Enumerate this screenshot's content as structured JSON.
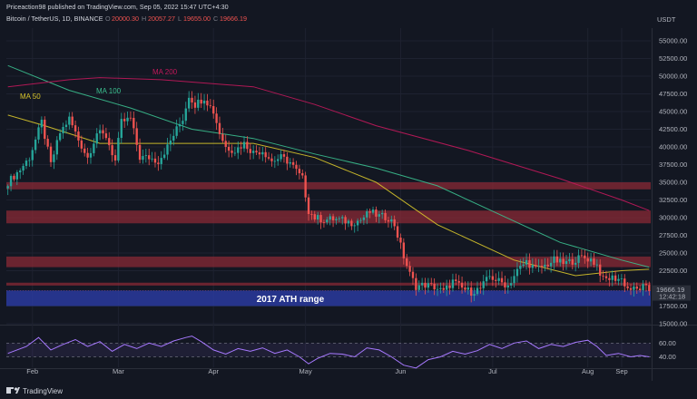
{
  "header": {
    "publish_line": "Priceaction98 published on TradingView.com, Sep 05, 2022 15:47 UTC+4:30",
    "symbol": "Bitcoin / TetherUS, 1D, BINANCE",
    "ohlc": [
      {
        "k": "O",
        "v": "20000.30"
      },
      {
        "k": "H",
        "v": "20057.27"
      },
      {
        "k": "L",
        "v": "19655.00"
      },
      {
        "k": "C",
        "v": "19666.19"
      }
    ]
  },
  "footer": {
    "brand": "TradingView"
  },
  "colors": {
    "bg": "#131722",
    "grid": "#1e2230",
    "up": "#26a69a",
    "down": "#ef5350",
    "ma50": "#d8c52b",
    "ma100": "#3bbf8f",
    "ma200": "#c2185b",
    "zone": "#8a2a36",
    "ath_zone": "#2a3a9e",
    "rsi": "#a779ff"
  },
  "chart_data": {
    "type": "candlestick",
    "symbol": "Bitcoin / TetherUS",
    "timeframe": "1D",
    "exchange": "BINANCE",
    "currency": "USDT",
    "y_ticks": [
      "55000.00",
      "52500.00",
      "50000.00",
      "47500.00",
      "45000.00",
      "42500.00",
      "40000.00",
      "37500.00",
      "35000.00",
      "32500.00",
      "30000.00",
      "27500.00",
      "25000.00",
      "22500.00",
      "17500.00",
      "15000.00"
    ],
    "ylim": [
      15000,
      56800
    ],
    "x_ticks": [
      "Feb",
      "Mar",
      "Apr",
      "May",
      "Jun",
      "Jul",
      "Aug",
      "Sep"
    ],
    "last_price": "19666.19",
    "countdown": "12:42:18",
    "anchors": [
      [
        0,
        35000
      ],
      [
        4,
        36800
      ],
      [
        7,
        38500
      ],
      [
        11,
        43500
      ],
      [
        14,
        37500
      ],
      [
        17,
        42000
      ],
      [
        20,
        44000
      ],
      [
        23,
        41000
      ],
      [
        26,
        38500
      ],
      [
        29,
        42000
      ],
      [
        32,
        41500
      ],
      [
        35,
        38000
      ],
      [
        37,
        43500
      ],
      [
        40,
        44000
      ],
      [
        43,
        38500
      ],
      [
        46,
        38500
      ],
      [
        49,
        38000
      ],
      [
        52,
        40000
      ],
      [
        55,
        42500
      ],
      [
        57,
        44000
      ],
      [
        59,
        47300
      ],
      [
        61,
        46000
      ],
      [
        64,
        47000
      ],
      [
        67,
        45000
      ],
      [
        69,
        42000
      ],
      [
        71,
        40000
      ],
      [
        74,
        39500
      ],
      [
        77,
        40500
      ],
      [
        80,
        39200
      ],
      [
        83,
        39500
      ],
      [
        86,
        38000
      ],
      [
        89,
        38500
      ],
      [
        92,
        37800
      ],
      [
        95,
        36000
      ],
      [
        96,
        35500
      ],
      [
        98,
        31000
      ],
      [
        100,
        30000
      ],
      [
        103,
        29700
      ],
      [
        106,
        29800
      ],
      [
        109,
        29600
      ],
      [
        112,
        29300
      ],
      [
        115,
        29700
      ],
      [
        118,
        30800
      ],
      [
        121,
        30200
      ],
      [
        124,
        30000
      ],
      [
        126,
        29000
      ],
      [
        129,
        24500
      ],
      [
        131,
        22000
      ],
      [
        133,
        20300
      ],
      [
        136,
        20500
      ],
      [
        139,
        20200
      ],
      [
        142,
        19500
      ],
      [
        145,
        21000
      ],
      [
        148,
        20000
      ],
      [
        151,
        19500
      ],
      [
        154,
        20000
      ],
      [
        157,
        21700
      ],
      [
        160,
        21000
      ],
      [
        163,
        20400
      ],
      [
        166,
        22500
      ],
      [
        169,
        23800
      ],
      [
        172,
        22700
      ],
      [
        175,
        23200
      ],
      [
        178,
        24000
      ],
      [
        181,
        23500
      ],
      [
        184,
        23900
      ],
      [
        187,
        24400
      ],
      [
        190,
        24100
      ],
      [
        192,
        23300
      ],
      [
        194,
        21200
      ],
      [
        197,
        21500
      ],
      [
        200,
        21300
      ],
      [
        202,
        20000
      ],
      [
        205,
        19800
      ],
      [
        207,
        20200
      ],
      [
        209,
        19700
      ]
    ],
    "moving_averages": [
      {
        "name": "MA 50",
        "points": [
          [
            0,
            44500
          ],
          [
            12,
            43000
          ],
          [
            30,
            40500
          ],
          [
            60,
            40500
          ],
          [
            80,
            40500
          ],
          [
            100,
            38500
          ],
          [
            120,
            35000
          ],
          [
            140,
            29000
          ],
          [
            165,
            24000
          ],
          [
            185,
            21800
          ],
          [
            200,
            22500
          ],
          [
            209,
            22700
          ]
        ]
      },
      {
        "name": "MA 100",
        "points": [
          [
            0,
            51500
          ],
          [
            20,
            48000
          ],
          [
            40,
            45500
          ],
          [
            60,
            42500
          ],
          [
            80,
            41200
          ],
          [
            100,
            39000
          ],
          [
            120,
            37000
          ],
          [
            140,
            34500
          ],
          [
            160,
            30500
          ],
          [
            180,
            26500
          ],
          [
            200,
            24000
          ],
          [
            209,
            23000
          ]
        ]
      },
      {
        "name": "MA 200",
        "points": [
          [
            0,
            48500
          ],
          [
            20,
            49500
          ],
          [
            30,
            49800
          ],
          [
            50,
            49500
          ],
          [
            80,
            48500
          ],
          [
            100,
            46000
          ],
          [
            120,
            43000
          ],
          [
            150,
            39500
          ],
          [
            180,
            35500
          ],
          [
            200,
            32500
          ],
          [
            209,
            31000
          ]
        ]
      }
    ],
    "zones": [
      {
        "from": 34000,
        "to": 35000
      },
      {
        "from": 29200,
        "to": 31000
      },
      {
        "from": 23000,
        "to": 24500
      },
      {
        "from": 20400,
        "to": 20800
      },
      {
        "from": 17500,
        "to": 19700,
        "label": "2017 ATH range"
      }
    ],
    "annotations": [
      "MA 50",
      "MA 100",
      "MA 200",
      "2017 ATH range"
    ],
    "rsi": {
      "levels": [
        "60.00",
        "40.00"
      ],
      "points": [
        [
          0,
          45
        ],
        [
          6,
          55
        ],
        [
          10,
          68
        ],
        [
          14,
          50
        ],
        [
          18,
          58
        ],
        [
          22,
          65
        ],
        [
          26,
          55
        ],
        [
          30,
          62
        ],
        [
          34,
          48
        ],
        [
          38,
          58
        ],
        [
          42,
          52
        ],
        [
          46,
          60
        ],
        [
          50,
          55
        ],
        [
          54,
          63
        ],
        [
          58,
          68
        ],
        [
          60,
          70
        ],
        [
          63,
          62
        ],
        [
          67,
          50
        ],
        [
          71,
          44
        ],
        [
          75,
          52
        ],
        [
          79,
          48
        ],
        [
          83,
          53
        ],
        [
          87,
          45
        ],
        [
          91,
          50
        ],
        [
          95,
          40
        ],
        [
          98,
          30
        ],
        [
          101,
          38
        ],
        [
          105,
          45
        ],
        [
          109,
          44
        ],
        [
          113,
          40
        ],
        [
          117,
          53
        ],
        [
          121,
          50
        ],
        [
          125,
          40
        ],
        [
          129,
          28
        ],
        [
          133,
          24
        ],
        [
          137,
          36
        ],
        [
          141,
          40
        ],
        [
          145,
          48
        ],
        [
          149,
          44
        ],
        [
          153,
          49
        ],
        [
          157,
          58
        ],
        [
          161,
          52
        ],
        [
          165,
          60
        ],
        [
          169,
          63
        ],
        [
          173,
          52
        ],
        [
          177,
          58
        ],
        [
          181,
          55
        ],
        [
          185,
          61
        ],
        [
          189,
          64
        ],
        [
          192,
          55
        ],
        [
          195,
          42
        ],
        [
          199,
          45
        ],
        [
          203,
          40
        ],
        [
          206,
          42
        ],
        [
          209,
          40
        ]
      ]
    }
  }
}
